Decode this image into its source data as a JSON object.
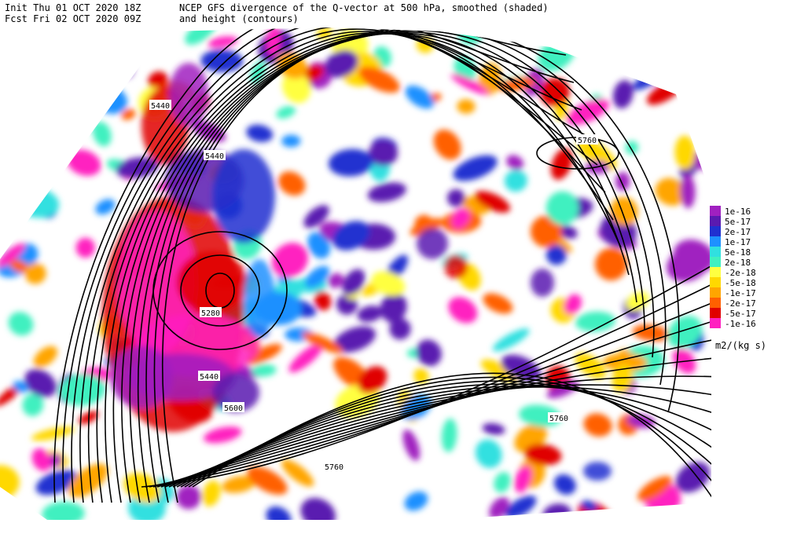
{
  "header": {
    "init": "Init  Thu 01 OCT 2020 18Z",
    "fcst": "Fcst Fri 02 OCT 2020 09Z",
    "title_line1": "NCEP GFS divergence of the Q-vector at 500 hPa, smoothed (shaded)",
    "title_line2": "and height (contours)"
  },
  "legend": {
    "items": [
      {
        "label": "1e-16",
        "color": "#a020c0"
      },
      {
        "label": "5e-17",
        "color": "#5a1ab0"
      },
      {
        "label": "2e-17",
        "color": "#2030d0"
      },
      {
        "label": "1e-17",
        "color": "#1e90ff"
      },
      {
        "label": "5e-18",
        "color": "#30e0e0"
      },
      {
        "label": "2e-18",
        "color": "#40f0c0"
      },
      {
        "label": "-2e-18",
        "color": "#ffff40"
      },
      {
        "label": "-5e-18",
        "color": "#ffd800"
      },
      {
        "label": "-1e-17",
        "color": "#ffa500"
      },
      {
        "label": "-2e-17",
        "color": "#ff6000"
      },
      {
        "label": "-5e-17",
        "color": "#e00000"
      },
      {
        "label": "-1e-16",
        "color": "#ff20c0"
      }
    ],
    "units": "m2/(kg s)"
  },
  "contour_labels": [
    "5440",
    "5440",
    "5280",
    "5440",
    "5600",
    "5760",
    "5760",
    "5760"
  ]
}
